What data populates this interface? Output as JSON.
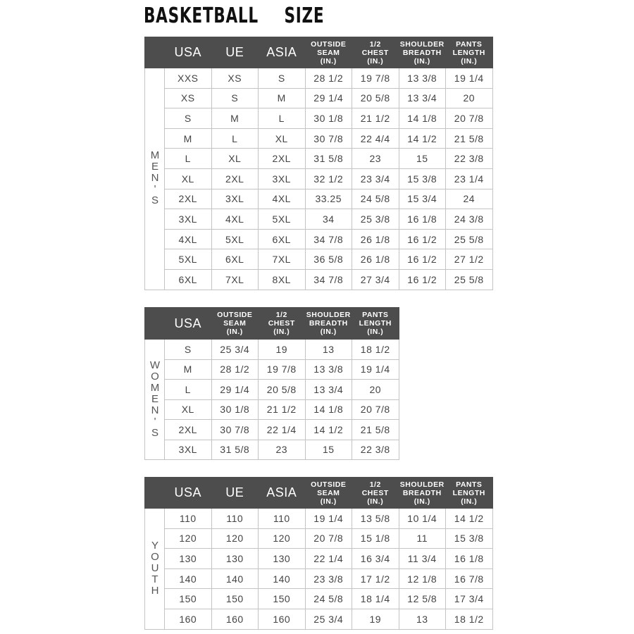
{
  "title": "BASKETBALL  SIZE",
  "colors": {
    "header_bg": "#4d4d4d",
    "border": "#c4c4c4"
  },
  "tables": [
    {
      "id": "mens",
      "side_label": "MEN'S",
      "headers": [
        "USA",
        "UE",
        "ASIA",
        "OUTSIDE SEAM (IN.)",
        "1/2 CHEST (IN.)",
        "SHOULDER BREADTH (IN.)",
        "PANTS LENGTH (IN.)"
      ],
      "rows": [
        [
          "XXS",
          "XS",
          "S",
          "28 1/2",
          "19 7/8",
          "13 3/8",
          "19 1/4"
        ],
        [
          "XS",
          "S",
          "M",
          "29 1/4",
          "20 5/8",
          "13 3/4",
          "20"
        ],
        [
          "S",
          "M",
          "L",
          "30 1/8",
          "21 1/2",
          "14 1/8",
          "20 7/8"
        ],
        [
          "M",
          "L",
          "XL",
          "30 7/8",
          "22 4/4",
          "14 1/2",
          "21 5/8"
        ],
        [
          "L",
          "XL",
          "2XL",
          "31 5/8",
          "23",
          "15",
          "22 3/8"
        ],
        [
          "XL",
          "2XL",
          "3XL",
          "32 1/2",
          "23 3/4",
          "15 3/8",
          "23 1/4"
        ],
        [
          "2XL",
          "3XL",
          "4XL",
          "33.25",
          "24 5/8",
          "15 3/4",
          "24"
        ],
        [
          "3XL",
          "4XL",
          "5XL",
          "34",
          "25 3/8",
          "16 1/8",
          "24 3/8"
        ],
        [
          "4XL",
          "5XL",
          "6XL",
          "34 7/8",
          "26 1/8",
          "16 1/2",
          "25 5/8"
        ],
        [
          "5XL",
          "6XL",
          "7XL",
          "36 5/8",
          "26 1/8",
          "16 1/2",
          "27 1/2"
        ],
        [
          "6XL",
          "7XL",
          "8XL",
          "34 7/8",
          "27 3/4",
          "16 1/2",
          "25 5/8"
        ]
      ]
    },
    {
      "id": "womens",
      "side_label": "WOMEN'S",
      "headers": [
        "USA",
        "OUTSIDE SEAM (IN.)",
        "1/2 CHEST (IN.)",
        "SHOULDER BREADTH (IN.)",
        "PANTS LENGTH (IN.)"
      ],
      "rows": [
        [
          "S",
          "25 3/4",
          "19",
          "13",
          "18 1/2"
        ],
        [
          "M",
          "28 1/2",
          "19 7/8",
          "13 3/8",
          "19 1/4"
        ],
        [
          "L",
          "29 1/4",
          "20 5/8",
          "13 3/4",
          "20"
        ],
        [
          "XL",
          "30 1/8",
          "21 1/2",
          "14 1/8",
          "20 7/8"
        ],
        [
          "2XL",
          "30 7/8",
          "22 1/4",
          "14 1/2",
          "21 5/8"
        ],
        [
          "3XL",
          "31 5/8",
          "23",
          "15",
          "22 3/8"
        ]
      ]
    },
    {
      "id": "youth",
      "side_label": "YOUTH",
      "headers": [
        "USA",
        "UE",
        "ASIA",
        "OUTSIDE SEAM (IN.)",
        "1/2 CHEST (IN.)",
        "SHOULDER BREADTH (IN.)",
        "PANTS LENGTH (IN.)"
      ],
      "rows": [
        [
          "110",
          "110",
          "110",
          "19 1/4",
          "13 5/8",
          "10 1/4",
          "14 1/2"
        ],
        [
          "120",
          "120",
          "120",
          "20 7/8",
          "15 1/8",
          "11",
          "15 3/8"
        ],
        [
          "130",
          "130",
          "130",
          "22 1/4",
          "16 3/4",
          "11 3/4",
          "16 1/8"
        ],
        [
          "140",
          "140",
          "140",
          "23 3/8",
          "17 1/2",
          "12 1/8",
          "16 7/8"
        ],
        [
          "150",
          "150",
          "150",
          "24 5/8",
          "18 1/4",
          "12 5/8",
          "17 3/4"
        ],
        [
          "160",
          "160",
          "160",
          "25 3/4",
          "19",
          "13",
          "18 1/2"
        ]
      ]
    }
  ]
}
